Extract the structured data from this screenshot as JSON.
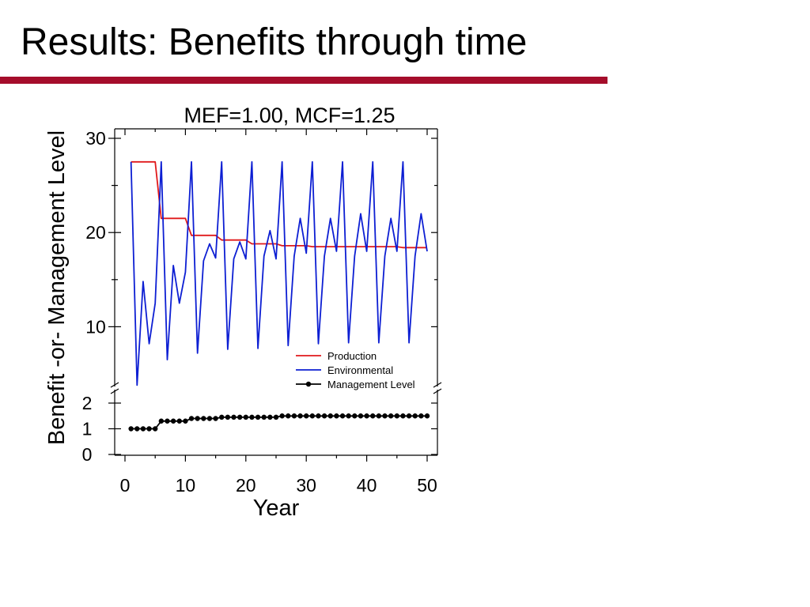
{
  "slide": {
    "title": "Results: Benefits through time",
    "accent_color": "#a50d2b"
  },
  "chart_data": {
    "type": "line",
    "title": "MEF=1.00, MCF=1.25",
    "xlabel": "Year",
    "ylabel": "Benefit -or- Management Level",
    "xlim": [
      0,
      50
    ],
    "x_ticks": [
      0,
      10,
      20,
      30,
      40,
      50
    ],
    "upper_panel": {
      "ylim": [
        5,
        30
      ],
      "y_ticks": [
        10,
        20,
        30
      ]
    },
    "lower_panel": {
      "ylim": [
        0,
        2
      ],
      "y_ticks": [
        0,
        1,
        2
      ]
    },
    "grid": false,
    "legend_position": "bottom-right of upper panel",
    "axis_break": true,
    "x": [
      1,
      2,
      3,
      4,
      5,
      6,
      7,
      8,
      9,
      10,
      11,
      12,
      13,
      14,
      15,
      16,
      17,
      18,
      19,
      20,
      21,
      22,
      23,
      24,
      25,
      26,
      27,
      28,
      29,
      30,
      31,
      32,
      33,
      34,
      35,
      36,
      37,
      38,
      39,
      40,
      41,
      42,
      43,
      44,
      45,
      46,
      47,
      48,
      49,
      50
    ],
    "series": [
      {
        "name": "Production",
        "color": "#e0191b",
        "panel": "upper",
        "marker": "none",
        "values": [
          27.5,
          27.5,
          27.5,
          27.5,
          27.5,
          21.5,
          21.5,
          21.5,
          21.5,
          21.5,
          19.7,
          19.7,
          19.7,
          19.7,
          19.7,
          19.2,
          19.2,
          19.2,
          19.2,
          19.2,
          18.8,
          18.8,
          18.8,
          18.8,
          18.8,
          18.6,
          18.6,
          18.6,
          18.6,
          18.6,
          18.5,
          18.5,
          18.5,
          18.5,
          18.5,
          18.5,
          18.5,
          18.5,
          18.5,
          18.5,
          18.5,
          18.5,
          18.5,
          18.5,
          18.5,
          18.4,
          18.4,
          18.4,
          18.4,
          18.4
        ]
      },
      {
        "name": "Environmental",
        "color": "#0d1fd3",
        "panel": "upper",
        "marker": "none",
        "values": [
          27.5,
          3.8,
          14.8,
          8.2,
          12.5,
          27.5,
          6.5,
          16.5,
          12.5,
          15.8,
          27.5,
          7.2,
          17.0,
          18.8,
          17.3,
          27.5,
          7.6,
          17.2,
          19.0,
          17.2,
          27.5,
          7.7,
          17.5,
          20.2,
          17.2,
          27.5,
          8.0,
          17.5,
          21.5,
          17.8,
          27.5,
          8.2,
          17.5,
          21.5,
          18.0,
          27.5,
          8.3,
          17.5,
          22.0,
          18.0,
          27.5,
          8.3,
          17.5,
          21.5,
          18.0,
          27.5,
          8.3,
          17.5,
          22.0,
          18.0
        ]
      },
      {
        "name": "Management Level",
        "color": "#000000",
        "panel": "lower",
        "marker": "circle",
        "values": [
          1.0,
          1.0,
          1.0,
          1.0,
          1.0,
          1.3,
          1.3,
          1.3,
          1.3,
          1.3,
          1.4,
          1.4,
          1.4,
          1.4,
          1.4,
          1.45,
          1.45,
          1.45,
          1.45,
          1.45,
          1.45,
          1.45,
          1.45,
          1.45,
          1.45,
          1.5,
          1.5,
          1.5,
          1.5,
          1.5,
          1.5,
          1.5,
          1.5,
          1.5,
          1.5,
          1.5,
          1.5,
          1.5,
          1.5,
          1.5,
          1.5,
          1.5,
          1.5,
          1.5,
          1.5,
          1.5,
          1.5,
          1.5,
          1.5,
          1.5
        ]
      }
    ]
  }
}
